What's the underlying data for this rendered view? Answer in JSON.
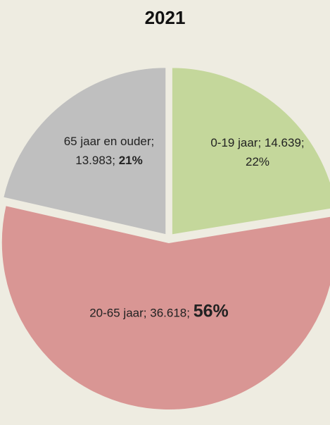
{
  "chart_data": {
    "type": "pie",
    "title": "2021",
    "categories": [
      "0-19 jaar",
      "20-65 jaar",
      "65 jaar en ouder"
    ],
    "values": [
      14639,
      36618,
      13983
    ],
    "value_labels": [
      "14.639",
      "36.618",
      "13.983"
    ],
    "percent_labels": [
      "22%",
      "56%",
      "21%"
    ],
    "separator": ";",
    "colors": [
      "#c4d79b",
      "#d99694",
      "#bfbfbf"
    ],
    "background": "#eeece1"
  }
}
